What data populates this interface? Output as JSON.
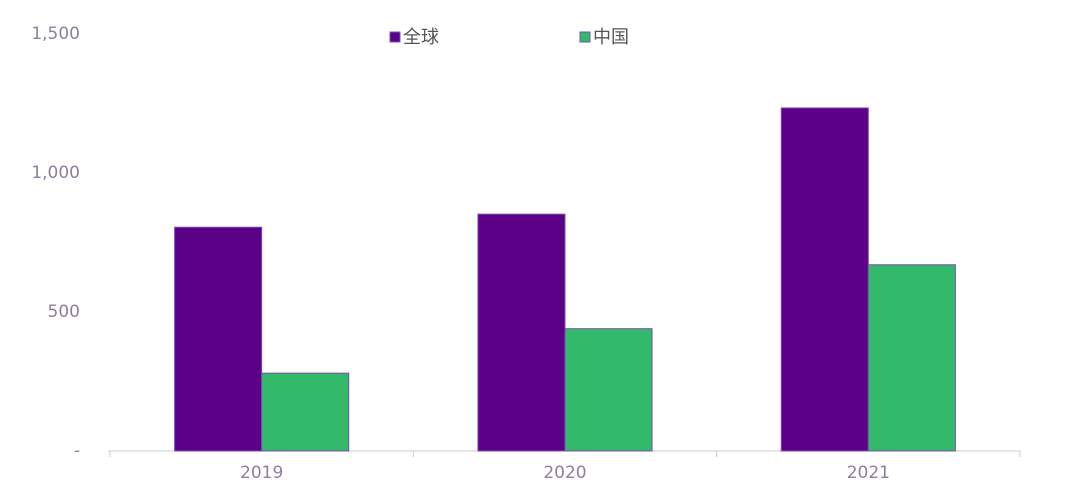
{
  "chart_data": {
    "type": "bar",
    "categories": [
      "2019",
      "2020",
      "2021"
    ],
    "series": [
      {
        "name": "全球",
        "color": "#5c0087",
        "values": [
          805,
          852,
          1234
        ]
      },
      {
        "name": "中国",
        "color": "#33b96a",
        "values": [
          280,
          440,
          670
        ]
      }
    ],
    "ylim": [
      0,
      1500
    ],
    "yticks": [
      {
        "value": 0,
        "label": "-"
      },
      500,
      {
        "value": 1000,
        "label": "1,000"
      },
      {
        "value": 1500,
        "label": "1,500"
      }
    ],
    "grid": false
  }
}
